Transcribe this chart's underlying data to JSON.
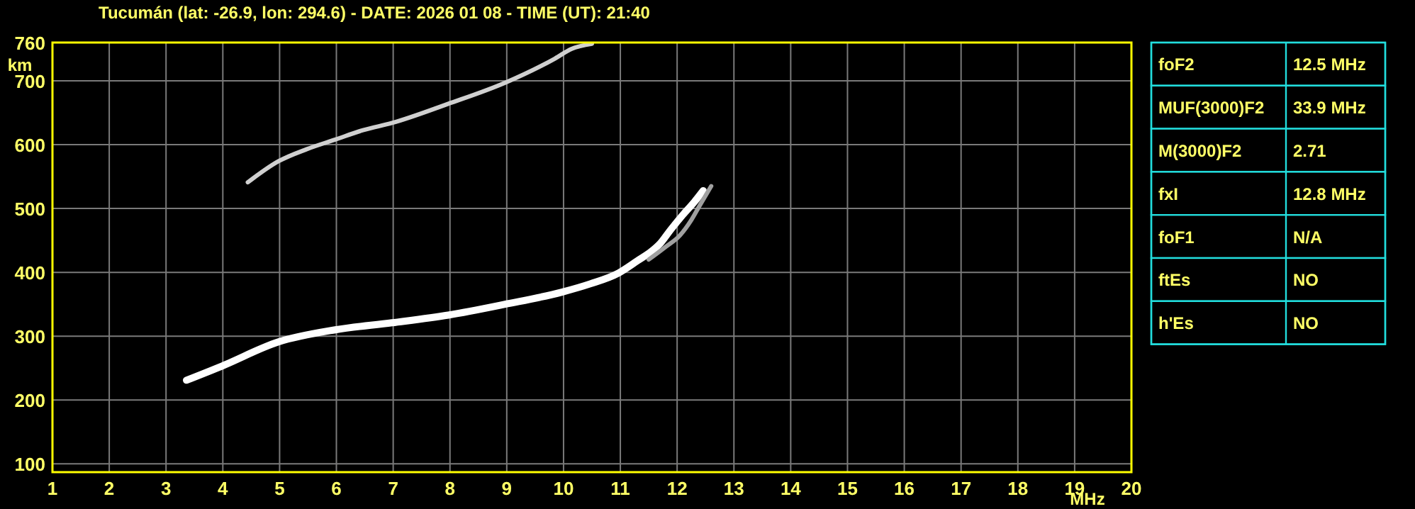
{
  "chart_data": [
    {
      "type": "line",
      "title": "Tucumán (lat: -26.9, lon: 294.6) - DATE: 2026 01 08 - TIME (UT): 21:40",
      "xlabel": "MHz",
      "ylabel": "km",
      "xlim": [
        1,
        20
      ],
      "ylim": [
        87,
        760
      ],
      "xticks": [
        1,
        2,
        3,
        4,
        5,
        6,
        7,
        8,
        9,
        10,
        11,
        12,
        13,
        14,
        15,
        16,
        17,
        18,
        19,
        20
      ],
      "yticks": [
        100,
        200,
        300,
        400,
        500,
        600,
        700,
        760
      ],
      "grid": true,
      "marker": "none",
      "line_style": "solid",
      "series": [
        {
          "color": "#ffffff",
          "x": [
            3.36,
            3.98,
            4.98,
            5.98,
            6.98,
            7.97,
            8.97,
            9.97,
            10.47,
            10.97,
            11.3,
            11.55,
            11.7,
            11.88,
            12.1,
            12.3,
            12.46
          ],
          "values": [
            231,
            253,
            291,
            310,
            321,
            333,
            350,
            369,
            382,
            399,
            418,
            433,
            445,
            466,
            490,
            510,
            528
          ]
        },
        {
          "color": "#a0a0a0",
          "x": [
            11.5,
            11.8,
            12.05,
            12.25,
            12.4,
            12.6
          ],
          "values": [
            420,
            440,
            458,
            482,
            505,
            535
          ]
        },
        {
          "color": "#d0d0d0",
          "x": [
            4.44,
            4.98,
            5.48,
            5.98,
            6.48,
            6.98,
            7.97,
            8.97,
            9.85,
            10.14,
            10.5
          ],
          "values": [
            541,
            574,
            593,
            608,
            623,
            634,
            664,
            697,
            735,
            750,
            758
          ]
        }
      ]
    },
    {
      "type": "other",
      "categories": [
        "foF2",
        "MUF(3000)F2",
        "M(3000)F2",
        "fxI",
        "foF1",
        "ftEs",
        "h'Es"
      ],
      "value_labels": [
        "12.5 MHz",
        "33.9 MHz",
        "2.71",
        "12.8 MHz",
        "N/A",
        "NO",
        "NO"
      ]
    }
  ]
}
